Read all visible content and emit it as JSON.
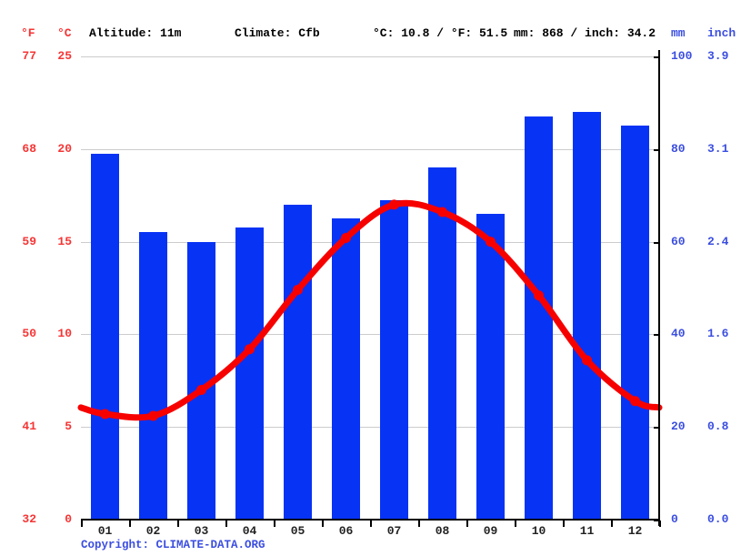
{
  "header": {
    "f_label": "°F",
    "c_label": "°C",
    "altitude": "Altitude: 11m",
    "climate": "Climate: Cfb",
    "temp_summary": "°C: 10.8 / °F: 51.5",
    "precip_summary": "mm: 868 / inch: 34.2",
    "mm_label": "mm",
    "inch_label": "inch"
  },
  "chart_data": {
    "type": "bar",
    "subtype": "climograph (precipitation bars + temperature line)",
    "categories": [
      "01",
      "02",
      "03",
      "04",
      "05",
      "06",
      "07",
      "08",
      "09",
      "10",
      "11",
      "12"
    ],
    "series": [
      {
        "name": "Precipitation",
        "type": "bar",
        "unit": "mm",
        "values": [
          79,
          62,
          60,
          63,
          68,
          65,
          69,
          76,
          66,
          87,
          88,
          85
        ]
      },
      {
        "name": "Average temperature",
        "type": "line",
        "unit": "°C",
        "values": [
          5.7,
          5.6,
          7.0,
          9.2,
          12.4,
          15.2,
          17.0,
          16.6,
          15.0,
          12.1,
          8.6,
          6.4
        ]
      }
    ],
    "left_axis": {
      "label_f": "°F",
      "label_c": "°C",
      "range_c": [
        0,
        25
      ],
      "range_f": [
        32,
        77
      ]
    },
    "right_axis": {
      "label_mm": "mm",
      "label_inch": "inch",
      "range_mm": [
        0,
        100
      ],
      "range_inch": [
        0.0,
        3.9
      ]
    },
    "gridline_labels": [
      {
        "f": "77",
        "c": "25",
        "mm": "100",
        "inch": "3.9"
      },
      {
        "f": "68",
        "c": "20",
        "mm": "80",
        "inch": "3.1"
      },
      {
        "f": "59",
        "c": "15",
        "mm": "60",
        "inch": "2.4"
      },
      {
        "f": "50",
        "c": "10",
        "mm": "40",
        "inch": "1.6"
      },
      {
        "f": "41",
        "c": "5",
        "mm": "20",
        "inch": "0.8"
      },
      {
        "f": "32",
        "c": "0",
        "mm": "0",
        "inch": "0.0"
      }
    ],
    "title": "",
    "xlabel": "",
    "ylabel": "",
    "grid": true,
    "legend_position": "none"
  },
  "footer": {
    "copyright_label": "Copyright: ",
    "link_text": "CLIMATE-DATA.ORG"
  },
  "colors": {
    "bar": "#0733f5",
    "line": "#f70000",
    "red_text": "#f63535",
    "blue_text": "#3b4ee0",
    "grid": "#cccccc",
    "month_text": "#222222"
  }
}
